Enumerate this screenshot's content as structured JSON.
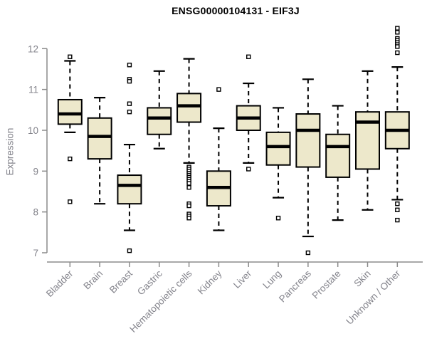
{
  "chart_data": {
    "type": "boxplot",
    "title": "ENSG00000104131 - EIF3J",
    "ylabel": "Expression",
    "xlabel": "",
    "yticks": [
      7,
      8,
      9,
      10,
      11,
      12
    ],
    "ylim": [
      6.8,
      12.6
    ],
    "grid": false,
    "legend": false,
    "categories": [
      "Bladder",
      "Brain",
      "Breast",
      "Gastric",
      "Hematopoietic cells",
      "Kidney",
      "Liver",
      "Lung",
      "Pancreas",
      "Prostate",
      "Skin",
      "Unknown / Other"
    ],
    "boxes": [
      {
        "category": "Bladder",
        "whisker_low": 9.95,
        "q1": 10.15,
        "median": 10.4,
        "q3": 10.75,
        "whisker_high": 11.7,
        "outliers": [
          11.8,
          9.3,
          8.25
        ]
      },
      {
        "category": "Brain",
        "whisker_low": 8.2,
        "q1": 9.3,
        "median": 9.85,
        "q3": 10.3,
        "whisker_high": 10.8,
        "outliers": []
      },
      {
        "category": "Breast",
        "whisker_low": 7.55,
        "q1": 8.2,
        "median": 8.65,
        "q3": 8.9,
        "whisker_high": 9.65,
        "outliers": [
          11.6,
          11.25,
          11.2,
          10.65,
          10.45,
          7.05
        ]
      },
      {
        "category": "Gastric",
        "whisker_low": 9.55,
        "q1": 9.9,
        "median": 10.3,
        "q3": 10.55,
        "whisker_high": 11.45,
        "outliers": []
      },
      {
        "category": "Hematopoietic cells",
        "whisker_low": 9.2,
        "q1": 10.2,
        "median": 10.6,
        "q3": 10.9,
        "whisker_high": 11.75,
        "outliers": [
          9.1,
          9.05,
          9.0,
          8.95,
          8.9,
          8.85,
          8.8,
          8.75,
          8.7,
          8.6,
          8.2,
          8.15,
          7.95,
          7.9,
          7.85
        ]
      },
      {
        "category": "Kidney",
        "whisker_low": 7.55,
        "q1": 8.15,
        "median": 8.6,
        "q3": 9.0,
        "whisker_high": 10.05,
        "outliers": [
          11.0
        ]
      },
      {
        "category": "Liver",
        "whisker_low": 9.2,
        "q1": 10.0,
        "median": 10.3,
        "q3": 10.6,
        "whisker_high": 11.15,
        "outliers": [
          11.8,
          9.05
        ]
      },
      {
        "category": "Lung",
        "whisker_low": 8.35,
        "q1": 9.15,
        "median": 9.6,
        "q3": 9.95,
        "whisker_high": 10.55,
        "outliers": [
          7.85
        ]
      },
      {
        "category": "Pancreas",
        "whisker_low": 7.4,
        "q1": 9.1,
        "median": 10.0,
        "q3": 10.4,
        "whisker_high": 11.25,
        "outliers": [
          7.0
        ]
      },
      {
        "category": "Prostate",
        "whisker_low": 7.8,
        "q1": 8.85,
        "median": 9.6,
        "q3": 9.9,
        "whisker_high": 10.6,
        "outliers": []
      },
      {
        "category": "Skin",
        "whisker_low": 8.05,
        "q1": 9.05,
        "median": 10.2,
        "q3": 10.45,
        "whisker_high": 11.45,
        "outliers": []
      },
      {
        "category": "Unknown / Other",
        "whisker_low": 8.3,
        "q1": 9.55,
        "median": 10.0,
        "q3": 10.45,
        "whisker_high": 11.55,
        "outliers": [
          12.5,
          12.4,
          12.25,
          12.2,
          12.15,
          12.1,
          12.05,
          11.9,
          8.2,
          8.05,
          7.8
        ]
      }
    ],
    "colors": {
      "box_fill": "#EDE8CB",
      "box_border": "#000000",
      "median": "#000000",
      "whisker": "#000000",
      "outlier_fill": "#FFFFFF",
      "outlier_border": "#000000",
      "axis_line": "#8B8B8B",
      "axis_text": "#83838B",
      "title": "#000000",
      "background": "#FFFFFF"
    }
  }
}
